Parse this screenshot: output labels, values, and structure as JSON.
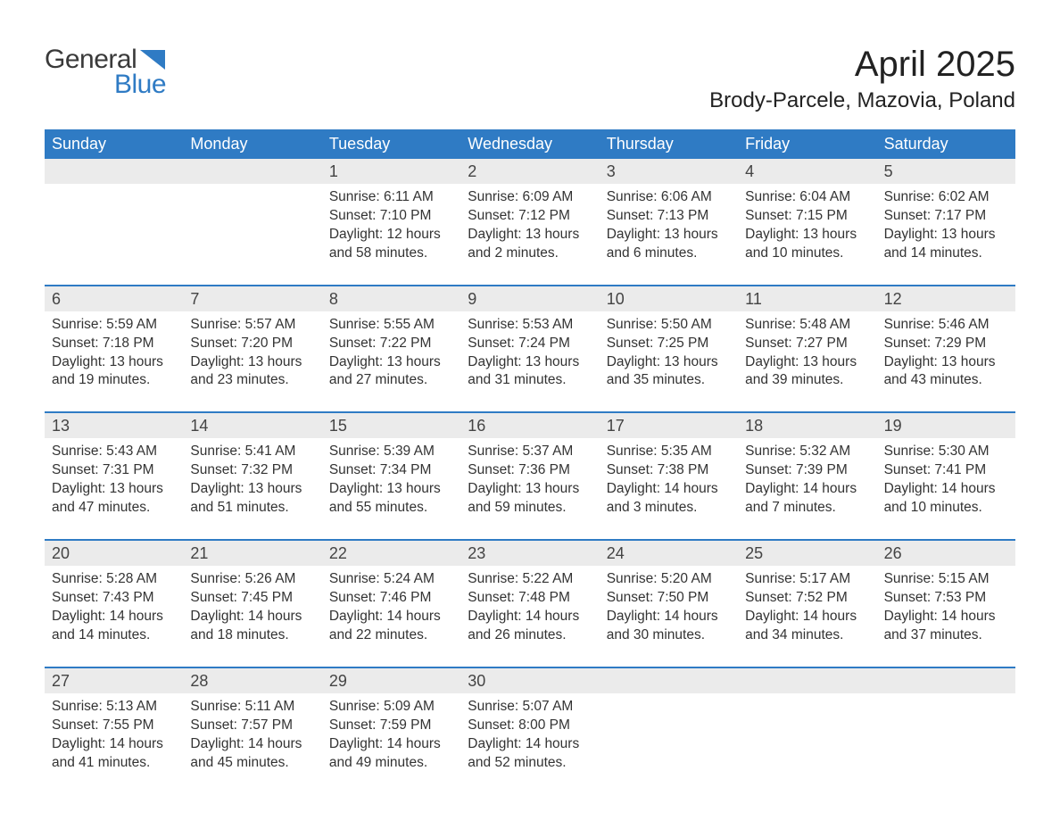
{
  "logo": {
    "general": "General",
    "blue": "Blue"
  },
  "title": "April 2025",
  "location": "Brody-Parcele, Mazovia, Poland",
  "colors": {
    "header_bg": "#2f7bc4",
    "header_text": "#ffffff",
    "daynum_bg": "#ebebeb",
    "week_divider": "#2f7bc4",
    "body_text": "#333333",
    "title_text": "#222222",
    "logo_general": "#3a3a3a",
    "logo_blue": "#2f7bc4",
    "page_bg": "#ffffff"
  },
  "typography": {
    "month_title_fontsize": 40,
    "location_fontsize": 24,
    "day_header_fontsize": 18,
    "daynum_fontsize": 18,
    "cell_fontsize": 15.5,
    "logo_fontsize": 30
  },
  "day_labels": [
    "Sunday",
    "Monday",
    "Tuesday",
    "Wednesday",
    "Thursday",
    "Friday",
    "Saturday"
  ],
  "weeks": [
    [
      {
        "num": "",
        "sunrise": "",
        "sunset": "",
        "daylight1": "",
        "daylight2": ""
      },
      {
        "num": "",
        "sunrise": "",
        "sunset": "",
        "daylight1": "",
        "daylight2": ""
      },
      {
        "num": "1",
        "sunrise": "Sunrise: 6:11 AM",
        "sunset": "Sunset: 7:10 PM",
        "daylight1": "Daylight: 12 hours",
        "daylight2": "and 58 minutes."
      },
      {
        "num": "2",
        "sunrise": "Sunrise: 6:09 AM",
        "sunset": "Sunset: 7:12 PM",
        "daylight1": "Daylight: 13 hours",
        "daylight2": "and 2 minutes."
      },
      {
        "num": "3",
        "sunrise": "Sunrise: 6:06 AM",
        "sunset": "Sunset: 7:13 PM",
        "daylight1": "Daylight: 13 hours",
        "daylight2": "and 6 minutes."
      },
      {
        "num": "4",
        "sunrise": "Sunrise: 6:04 AM",
        "sunset": "Sunset: 7:15 PM",
        "daylight1": "Daylight: 13 hours",
        "daylight2": "and 10 minutes."
      },
      {
        "num": "5",
        "sunrise": "Sunrise: 6:02 AM",
        "sunset": "Sunset: 7:17 PM",
        "daylight1": "Daylight: 13 hours",
        "daylight2": "and 14 minutes."
      }
    ],
    [
      {
        "num": "6",
        "sunrise": "Sunrise: 5:59 AM",
        "sunset": "Sunset: 7:18 PM",
        "daylight1": "Daylight: 13 hours",
        "daylight2": "and 19 minutes."
      },
      {
        "num": "7",
        "sunrise": "Sunrise: 5:57 AM",
        "sunset": "Sunset: 7:20 PM",
        "daylight1": "Daylight: 13 hours",
        "daylight2": "and 23 minutes."
      },
      {
        "num": "8",
        "sunrise": "Sunrise: 5:55 AM",
        "sunset": "Sunset: 7:22 PM",
        "daylight1": "Daylight: 13 hours",
        "daylight2": "and 27 minutes."
      },
      {
        "num": "9",
        "sunrise": "Sunrise: 5:53 AM",
        "sunset": "Sunset: 7:24 PM",
        "daylight1": "Daylight: 13 hours",
        "daylight2": "and 31 minutes."
      },
      {
        "num": "10",
        "sunrise": "Sunrise: 5:50 AM",
        "sunset": "Sunset: 7:25 PM",
        "daylight1": "Daylight: 13 hours",
        "daylight2": "and 35 minutes."
      },
      {
        "num": "11",
        "sunrise": "Sunrise: 5:48 AM",
        "sunset": "Sunset: 7:27 PM",
        "daylight1": "Daylight: 13 hours",
        "daylight2": "and 39 minutes."
      },
      {
        "num": "12",
        "sunrise": "Sunrise: 5:46 AM",
        "sunset": "Sunset: 7:29 PM",
        "daylight1": "Daylight: 13 hours",
        "daylight2": "and 43 minutes."
      }
    ],
    [
      {
        "num": "13",
        "sunrise": "Sunrise: 5:43 AM",
        "sunset": "Sunset: 7:31 PM",
        "daylight1": "Daylight: 13 hours",
        "daylight2": "and 47 minutes."
      },
      {
        "num": "14",
        "sunrise": "Sunrise: 5:41 AM",
        "sunset": "Sunset: 7:32 PM",
        "daylight1": "Daylight: 13 hours",
        "daylight2": "and 51 minutes."
      },
      {
        "num": "15",
        "sunrise": "Sunrise: 5:39 AM",
        "sunset": "Sunset: 7:34 PM",
        "daylight1": "Daylight: 13 hours",
        "daylight2": "and 55 minutes."
      },
      {
        "num": "16",
        "sunrise": "Sunrise: 5:37 AM",
        "sunset": "Sunset: 7:36 PM",
        "daylight1": "Daylight: 13 hours",
        "daylight2": "and 59 minutes."
      },
      {
        "num": "17",
        "sunrise": "Sunrise: 5:35 AM",
        "sunset": "Sunset: 7:38 PM",
        "daylight1": "Daylight: 14 hours",
        "daylight2": "and 3 minutes."
      },
      {
        "num": "18",
        "sunrise": "Sunrise: 5:32 AM",
        "sunset": "Sunset: 7:39 PM",
        "daylight1": "Daylight: 14 hours",
        "daylight2": "and 7 minutes."
      },
      {
        "num": "19",
        "sunrise": "Sunrise: 5:30 AM",
        "sunset": "Sunset: 7:41 PM",
        "daylight1": "Daylight: 14 hours",
        "daylight2": "and 10 minutes."
      }
    ],
    [
      {
        "num": "20",
        "sunrise": "Sunrise: 5:28 AM",
        "sunset": "Sunset: 7:43 PM",
        "daylight1": "Daylight: 14 hours",
        "daylight2": "and 14 minutes."
      },
      {
        "num": "21",
        "sunrise": "Sunrise: 5:26 AM",
        "sunset": "Sunset: 7:45 PM",
        "daylight1": "Daylight: 14 hours",
        "daylight2": "and 18 minutes."
      },
      {
        "num": "22",
        "sunrise": "Sunrise: 5:24 AM",
        "sunset": "Sunset: 7:46 PM",
        "daylight1": "Daylight: 14 hours",
        "daylight2": "and 22 minutes."
      },
      {
        "num": "23",
        "sunrise": "Sunrise: 5:22 AM",
        "sunset": "Sunset: 7:48 PM",
        "daylight1": "Daylight: 14 hours",
        "daylight2": "and 26 minutes."
      },
      {
        "num": "24",
        "sunrise": "Sunrise: 5:20 AM",
        "sunset": "Sunset: 7:50 PM",
        "daylight1": "Daylight: 14 hours",
        "daylight2": "and 30 minutes."
      },
      {
        "num": "25",
        "sunrise": "Sunrise: 5:17 AM",
        "sunset": "Sunset: 7:52 PM",
        "daylight1": "Daylight: 14 hours",
        "daylight2": "and 34 minutes."
      },
      {
        "num": "26",
        "sunrise": "Sunrise: 5:15 AM",
        "sunset": "Sunset: 7:53 PM",
        "daylight1": "Daylight: 14 hours",
        "daylight2": "and 37 minutes."
      }
    ],
    [
      {
        "num": "27",
        "sunrise": "Sunrise: 5:13 AM",
        "sunset": "Sunset: 7:55 PM",
        "daylight1": "Daylight: 14 hours",
        "daylight2": "and 41 minutes."
      },
      {
        "num": "28",
        "sunrise": "Sunrise: 5:11 AM",
        "sunset": "Sunset: 7:57 PM",
        "daylight1": "Daylight: 14 hours",
        "daylight2": "and 45 minutes."
      },
      {
        "num": "29",
        "sunrise": "Sunrise: 5:09 AM",
        "sunset": "Sunset: 7:59 PM",
        "daylight1": "Daylight: 14 hours",
        "daylight2": "and 49 minutes."
      },
      {
        "num": "30",
        "sunrise": "Sunrise: 5:07 AM",
        "sunset": "Sunset: 8:00 PM",
        "daylight1": "Daylight: 14 hours",
        "daylight2": "and 52 minutes."
      },
      {
        "num": "",
        "sunrise": "",
        "sunset": "",
        "daylight1": "",
        "daylight2": ""
      },
      {
        "num": "",
        "sunrise": "",
        "sunset": "",
        "daylight1": "",
        "daylight2": ""
      },
      {
        "num": "",
        "sunrise": "",
        "sunset": "",
        "daylight1": "",
        "daylight2": ""
      }
    ]
  ]
}
